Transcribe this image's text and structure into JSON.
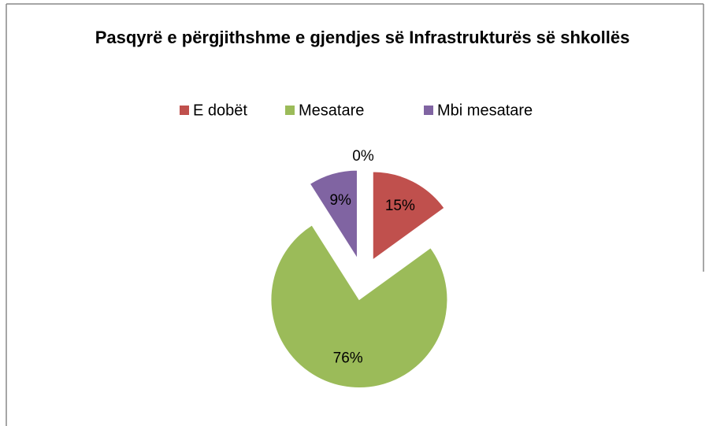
{
  "chart_data": {
    "type": "pie",
    "title": "Pasqyrë e përgjithshme e gjendjes së Infrastrukturës së shkollës",
    "categories": [
      "E dobët",
      "Mesatare",
      "Mbi mesatare",
      null
    ],
    "values": [
      15,
      76,
      9,
      0
    ],
    "value_labels": [
      "15%",
      "76%",
      "9%",
      "0%"
    ],
    "colors": [
      "#c0504d",
      "#9bbb59",
      "#8064a2",
      "#4f81bd"
    ],
    "legend": "top"
  }
}
